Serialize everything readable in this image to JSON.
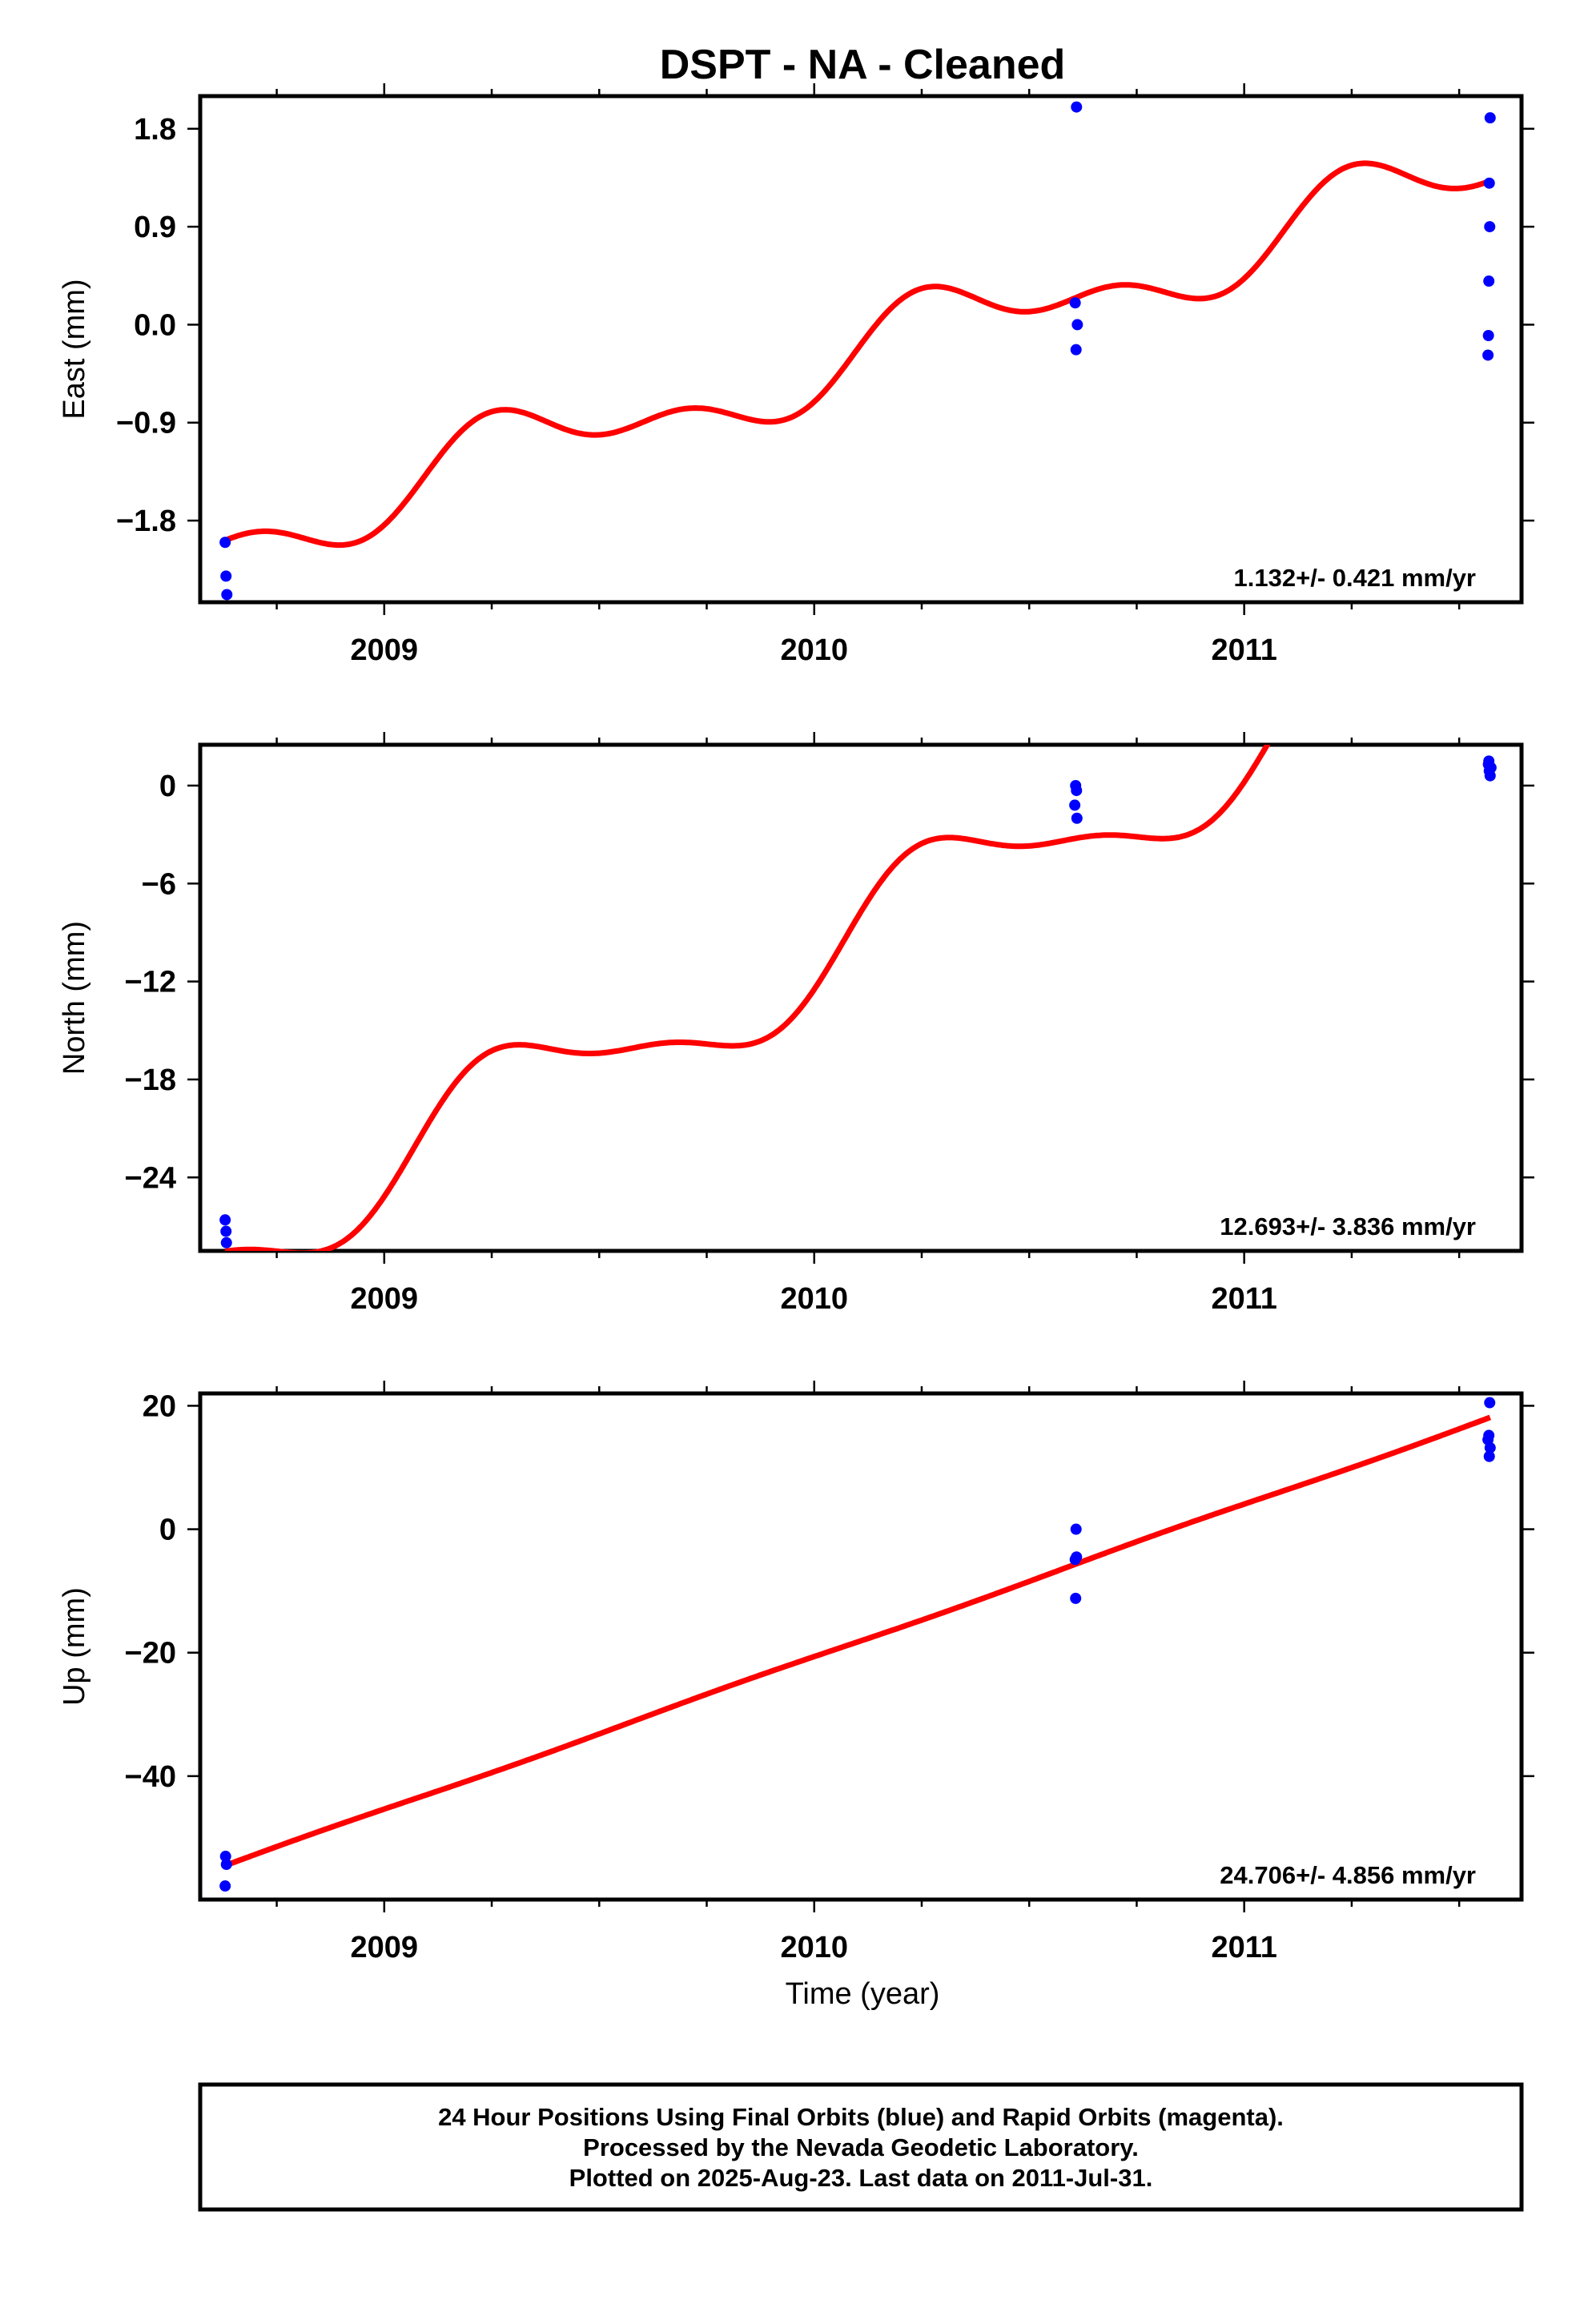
{
  "title": "DSPT  - NA - Cleaned",
  "xlabel": "Time (year)",
  "x_tick_labels": [
    "2009",
    "2010",
    "2011"
  ],
  "footer": {
    "line1": "24 Hour Positions Using Final Orbits (blue) and Rapid Orbits (magenta).",
    "line2": "Processed by the Nevada Geodetic Laboratory.",
    "line3": "Plotted on 2025-Aug-23. Last data on 2011-Jul-31."
  },
  "colors": {
    "final_orbits": "#0000ff",
    "fit": "#ff0000",
    "axes": "#000000"
  },
  "chart_data": [
    {
      "type": "scatter",
      "ylabel": "East (mm)",
      "rate_label": "1.132+/- 0.421 mm/yr",
      "xlim": [
        2008.572,
        2011.645
      ],
      "ylim": [
        -2.55,
        2.1
      ],
      "yticks": [
        1.8,
        0.9,
        0.0,
        -0.9,
        -1.8
      ],
      "ytick_labels": [
        "1.8",
        "0.9",
        "0.0",
        "−0.9",
        "−1.8"
      ],
      "grid": false,
      "series": [
        {
          "points": [
            [
              2008.63,
              -2.0
            ],
            [
              2008.632,
              -2.31
            ],
            [
              2008.634,
              -2.48
            ],
            [
              2010.61,
              2.0
            ],
            [
              2010.607,
              0.2
            ],
            [
              2010.612,
              0.0
            ],
            [
              2010.609,
              -0.23
            ],
            [
              2011.572,
              1.9
            ],
            [
              2011.57,
              1.3
            ],
            [
              2011.571,
              0.9
            ],
            [
              2011.569,
              0.4
            ],
            [
              2011.568,
              -0.1
            ],
            [
              2011.567,
              -0.28
            ]
          ]
        }
      ],
      "fit": {
        "offset": -2.015,
        "rate": 1.132,
        "annual_sin": -0.3,
        "annual_cos": 0.0,
        "semiannual_sin": 0.18,
        "semiannual_cos": -0.06
      }
    },
    {
      "type": "scatter",
      "ylabel": "North (mm)",
      "rate_label": "12.693+/- 3.836 mm/yr",
      "xlim": [
        2008.572,
        2011.645
      ],
      "ylim": [
        -28.5,
        2.5
      ],
      "yticks": [
        0,
        -6,
        -12,
        -18,
        -24
      ],
      "ytick_labels": [
        "0",
        "−6",
        "−12",
        "−18",
        "−24"
      ],
      "grid": false,
      "series": [
        {
          "points": [
            [
              2008.63,
              -26.6
            ],
            [
              2008.632,
              -27.3
            ],
            [
              2008.633,
              -28.0
            ],
            [
              2010.608,
              0.0
            ],
            [
              2010.61,
              -0.3
            ],
            [
              2010.606,
              -1.2
            ],
            [
              2010.611,
              -2.0
            ],
            [
              2011.568,
              1.3
            ],
            [
              2011.57,
              0.9
            ],
            [
              2011.572,
              0.6
            ],
            [
              2011.574,
              1.1
            ],
            [
              2011.569,
              1.5
            ]
          ]
        }
      ],
      "fit": {
        "offset": -28.6,
        "rate": 12.693,
        "annual_sin": -3.2,
        "annual_cos": -0.2,
        "semiannual_sin": 1.0,
        "semiannual_cos": 0.0
      }
    },
    {
      "type": "scatter",
      "ylabel": "Up (mm)",
      "rate_label": "24.706+/- 4.856 mm/yr",
      "xlim": [
        2008.572,
        2011.645
      ],
      "ylim": [
        -60,
        22
      ],
      "yticks": [
        20,
        0,
        -20,
        -40
      ],
      "ytick_labels": [
        "20",
        "0",
        "−20",
        "−40"
      ],
      "grid": false,
      "series": [
        {
          "points": [
            [
              2008.631,
              -53.0
            ],
            [
              2008.633,
              -54.3
            ],
            [
              2008.63,
              -57.8
            ],
            [
              2010.609,
              0.0
            ],
            [
              2010.61,
              -4.5
            ],
            [
              2010.607,
              -4.9
            ],
            [
              2010.608,
              -11.2
            ],
            [
              2011.571,
              20.5
            ],
            [
              2011.569,
              15.2
            ],
            [
              2011.567,
              14.5
            ],
            [
              2011.572,
              13.2
            ],
            [
              2011.57,
              11.8
            ]
          ]
        }
      ],
      "fit": {
        "offset": -56.0,
        "rate": 24.706,
        "annual_sin": 0.2,
        "annual_cos": 0.0,
        "semiannual_sin": 0.0,
        "semiannual_cos": 0.0
      }
    }
  ]
}
